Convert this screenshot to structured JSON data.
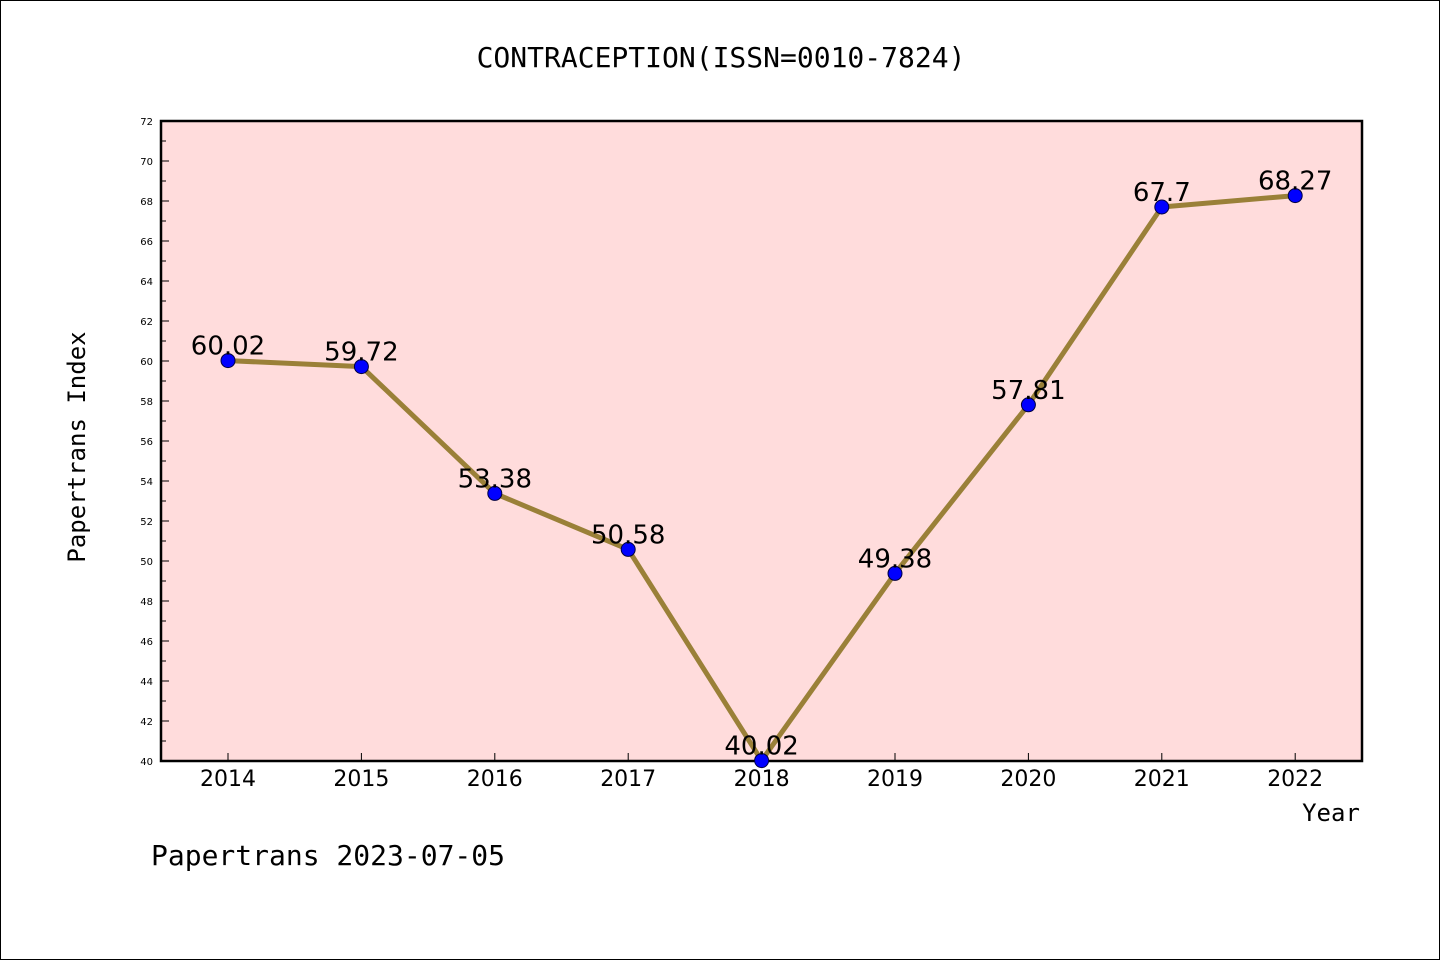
{
  "chart_data": {
    "type": "line",
    "title": "CONTRACEPTION(ISSN=0010-7824)",
    "xlabel": "Year",
    "ylabel": "Papertrans Index",
    "x": [
      "2014",
      "2015",
      "2016",
      "2017",
      "2018",
      "2019",
      "2020",
      "2021",
      "2022"
    ],
    "values": [
      60.02,
      59.72,
      53.38,
      50.58,
      40.02,
      49.38,
      57.81,
      67.7,
      68.27
    ],
    "data_labels": [
      "60.02",
      "59.72",
      "53.38",
      "50.58",
      "40.02",
      "49.38",
      "57.81",
      "67.7",
      "68.27"
    ],
    "ylim": [
      40,
      72
    ],
    "yticks": [
      "40",
      "42",
      "44",
      "46",
      "48",
      "50",
      "52",
      "54",
      "56",
      "58",
      "60",
      "62",
      "64",
      "66",
      "68",
      "70",
      "72"
    ],
    "grid": false,
    "colors": {
      "plot_background": "#ffdcdc",
      "line": "#9a8038",
      "marker": "#0000ff"
    }
  },
  "footer": "Papertrans 2023-07-05"
}
